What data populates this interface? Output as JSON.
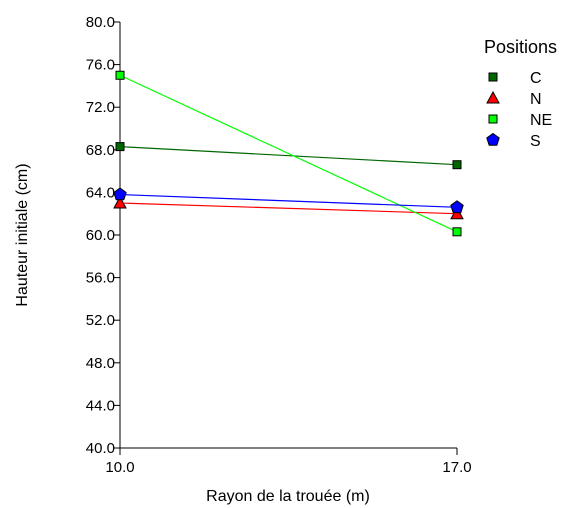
{
  "chart_data": {
    "type": "line",
    "x": [
      10.0,
      17.0
    ],
    "x_tick_labels": [
      "10.0",
      "17.0"
    ],
    "xlabel": "Rayon de la trouée (m)",
    "ylabel": "Hauteur initiale (cm)",
    "ylim": [
      40.0,
      80.0
    ],
    "y_ticks": [
      40.0,
      44.0,
      48.0,
      52.0,
      56.0,
      60.0,
      64.0,
      68.0,
      72.0,
      76.0,
      80.0
    ],
    "y_tick_labels": [
      "40.0",
      "44.0",
      "48.0",
      "52.0",
      "56.0",
      "60.0",
      "64.0",
      "68.0",
      "72.0",
      "76.0",
      "80.0"
    ],
    "grid": false,
    "legend_title": "Positions",
    "legend_position": "top-right",
    "series": [
      {
        "name": "C",
        "values": [
          68.3,
          66.6
        ],
        "color": "#006600",
        "marker": "square"
      },
      {
        "name": "N",
        "values": [
          63.0,
          62.0
        ],
        "color": "#ff0000",
        "marker": "triangle"
      },
      {
        "name": "NE",
        "values": [
          75.0,
          60.3
        ],
        "color": "#00ff00",
        "marker": "square"
      },
      {
        "name": "S",
        "values": [
          63.8,
          62.6
        ],
        "color": "#0000ff",
        "marker": "pentagon"
      }
    ]
  }
}
